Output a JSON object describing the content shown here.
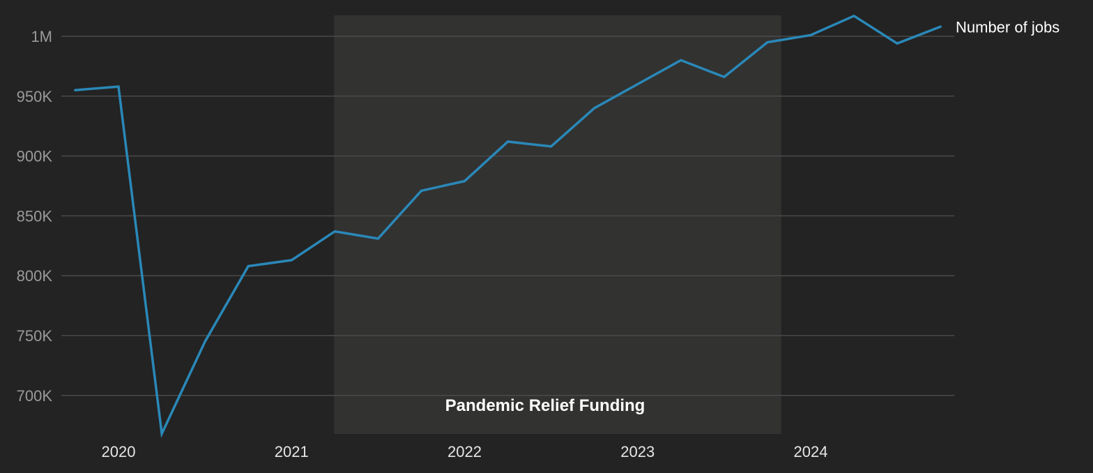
{
  "chart_data": {
    "type": "line",
    "title": "",
    "xlabel": "",
    "ylabel": "",
    "x": [
      "2019 Q4",
      "2020 Q1",
      "2020 Q2",
      "2020 Q3",
      "2020 Q4",
      "2021 Q1",
      "2021 Q2",
      "2021 Q3",
      "2021 Q4",
      "2022 Q1",
      "2022 Q2",
      "2022 Q3",
      "2022 Q4",
      "2023 Q1",
      "2023 Q2",
      "2023 Q3",
      "2023 Q4",
      "2024 Q1",
      "2024 Q2",
      "2024 Q3",
      "2024 Q4"
    ],
    "x_numeric": [
      2019.75,
      2020.0,
      2020.25,
      2020.5,
      2020.75,
      2021.0,
      2021.25,
      2021.5,
      2021.75,
      2022.0,
      2022.25,
      2022.5,
      2022.75,
      2023.0,
      2023.25,
      2023.5,
      2023.75,
      2024.0,
      2024.25,
      2024.5,
      2024.75
    ],
    "series": [
      {
        "name": "Number of jobs",
        "color": "#2a88b8",
        "values": [
          955000,
          958000,
          668000,
          745000,
          808000,
          813000,
          837000,
          831000,
          871000,
          879000,
          912000,
          908000,
          940000,
          960000,
          980000,
          966000,
          995000,
          1001000,
          1017000,
          994000,
          1008000
        ]
      }
    ],
    "xticks": [
      "2020",
      "2021",
      "2022",
      "2023",
      "2024"
    ],
    "xtick_values": [
      2020,
      2021,
      2022,
      2023,
      2024
    ],
    "yticks": [
      "700K",
      "750K",
      "800K",
      "850K",
      "900K",
      "950K",
      "1M"
    ],
    "ytick_values": [
      700000,
      750000,
      800000,
      850000,
      900000,
      950000,
      1000000
    ],
    "ylim": [
      668000,
      1018000
    ],
    "xlim": [
      2019.75,
      2024.75
    ],
    "grid": "horizontal",
    "legend": {
      "position": "right-end-label",
      "entries": [
        "Number of jobs"
      ]
    },
    "annotations": [
      {
        "type": "shaded-region",
        "label": "Pandemic Relief Funding",
        "x_start": 2021.25,
        "x_end": 2023.83,
        "color": "#323231"
      }
    ]
  },
  "colors": {
    "background": "#232323",
    "grid": "#4a4a4a",
    "line": "#2a88b8",
    "shade": "#323231",
    "ytick_text": "#9a9a9a",
    "xtick_text": "#e6e6e6"
  }
}
